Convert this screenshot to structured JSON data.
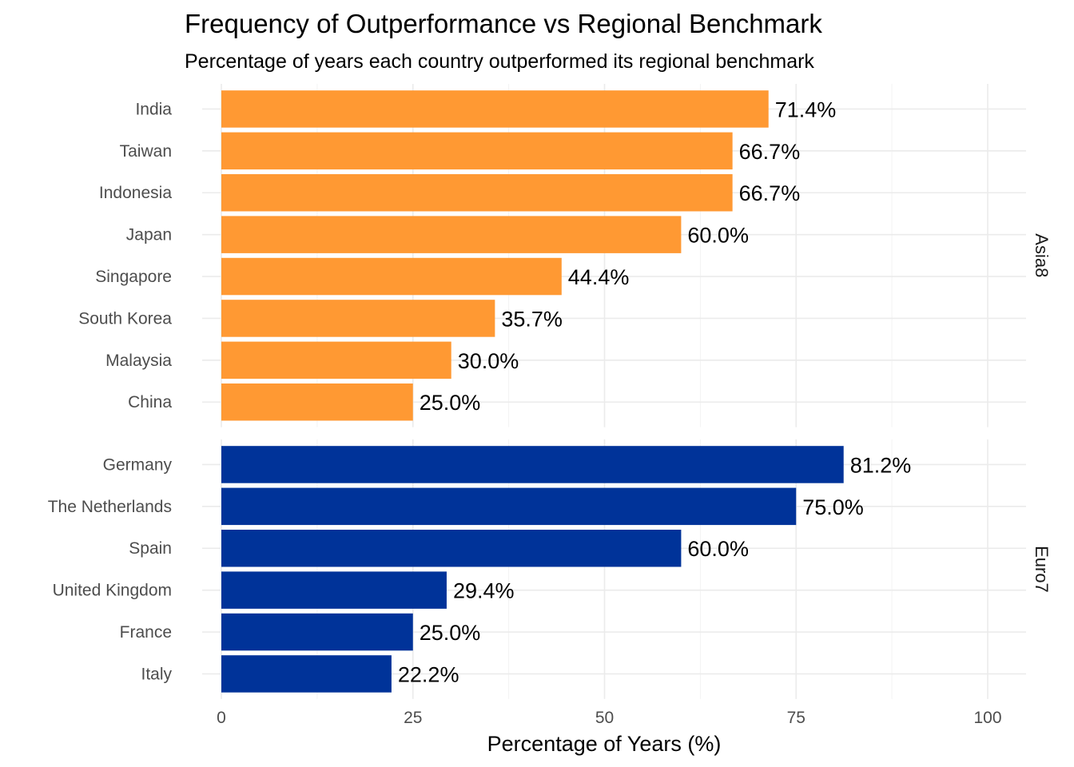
{
  "chart_data": {
    "type": "bar",
    "orientation": "horizontal",
    "title": "Frequency of Outperformance vs Regional Benchmark",
    "subtitle": "Percentage of years each country outperformed its regional benchmark",
    "xlabel": "Percentage of Years (%)",
    "ylabel": "",
    "xlim": [
      0,
      100
    ],
    "xticks": [
      0,
      25,
      50,
      75,
      100
    ],
    "grid": true,
    "facets": [
      {
        "name": "Asia8",
        "color": "#FF9933",
        "categories": [
          "India",
          "Taiwan",
          "Indonesia",
          "Japan",
          "Singapore",
          "South Korea",
          "Malaysia",
          "China"
        ],
        "values": [
          71.4,
          66.7,
          66.7,
          60.0,
          44.4,
          35.7,
          30.0,
          25.0
        ],
        "labels": [
          "71.4%",
          "66.7%",
          "66.7%",
          "60.0%",
          "44.4%",
          "35.7%",
          "30.0%",
          "25.0%"
        ]
      },
      {
        "name": "Euro7",
        "color": "#003399",
        "categories": [
          "Germany",
          "The Netherlands",
          "Spain",
          "United Kingdom",
          "France",
          "Italy"
        ],
        "values": [
          81.2,
          75.0,
          60.0,
          29.4,
          25.0,
          22.2
        ],
        "labels": [
          "81.2%",
          "75.0%",
          "60.0%",
          "29.4%",
          "25.0%",
          "22.2%"
        ]
      }
    ]
  }
}
